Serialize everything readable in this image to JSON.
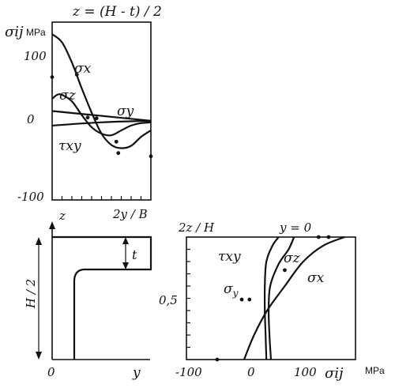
{
  "chart_data": [
    {
      "type": "line",
      "title": "z = (H - t) / 2",
      "ylabel": "σij",
      "y_unit": "MPa",
      "xlabel": "2y / B",
      "ylim": [
        -100,
        120
      ],
      "xlim": [
        0,
        1
      ],
      "y_ticks": [
        "100",
        "0",
        "-100"
      ],
      "series": [
        {
          "name": "σx",
          "x": [
            0,
            0.1,
            0.2,
            0.3,
            0.4,
            0.5,
            0.6,
            0.7,
            0.8,
            0.9,
            1.0
          ],
          "values": [
            105,
            95,
            70,
            38,
            8,
            -18,
            -32,
            -36,
            -33,
            -22,
            -14
          ]
        },
        {
          "name": "σz",
          "x": [
            0,
            0.05,
            0.1,
            0.2,
            0.3,
            0.4,
            0.5,
            0.6,
            0.7,
            0.8,
            0.9,
            1.0
          ],
          "values": [
            25,
            30,
            30,
            22,
            5,
            -10,
            -18,
            -20,
            -14,
            -8,
            -5,
            -4
          ]
        },
        {
          "name": "σy",
          "x": [
            0,
            0.5,
            1.0
          ],
          "values": [
            10,
            4,
            -2
          ]
        },
        {
          "name": "τxy",
          "x": [
            0,
            0.5,
            1.0
          ],
          "values": [
            -8,
            -4,
            -2
          ]
        }
      ],
      "points": [
        {
          "x": 0,
          "y": 52
        },
        {
          "x": 0.25,
          "y": 55
        },
        {
          "x": 0.36,
          "y": 2
        },
        {
          "x": 0.45,
          "y": 1
        },
        {
          "x": 0.65,
          "y": -28
        },
        {
          "x": 0.67,
          "y": -42
        },
        {
          "x": 1.0,
          "y": -46
        }
      ]
    },
    {
      "type": "line",
      "title": "y = 0",
      "ylabel": "2z / H",
      "xlabel": "σij",
      "x_unit": "MPa",
      "xlim": [
        -100,
        120
      ],
      "ylim": [
        0,
        1
      ],
      "x_ticks": [
        "-100",
        "0",
        "100"
      ],
      "y_ticks": [
        "0,5"
      ],
      "series": [
        {
          "name": "σx",
          "x": [
            -25,
            -12,
            5,
            28,
            52,
            78,
            106
          ],
          "values": [
            0,
            0.2,
            0.4,
            0.6,
            0.8,
            0.93,
            1.0
          ]
        },
        {
          "name": "σz",
          "x": [
            10,
            8,
            7,
            9,
            20,
            33,
            40
          ],
          "values": [
            0,
            0.2,
            0.4,
            0.6,
            0.78,
            0.9,
            1.0
          ]
        },
        {
          "name": "τxy",
          "x": [
            4,
            3,
            2,
            2,
            4,
            12,
            20
          ],
          "values": [
            0,
            0.2,
            0.4,
            0.6,
            0.8,
            0.93,
            1.0
          ]
        }
      ],
      "points": [
        {
          "x": -28,
          "y": 0.49
        },
        {
          "x": -18,
          "y": 0.49
        },
        {
          "x": 28,
          "y": 0.73
        },
        {
          "x": 72,
          "y": 1.0
        },
        {
          "x": 85,
          "y": 1.0
        },
        {
          "x": -60,
          "y": 0
        }
      ]
    }
  ],
  "section": {
    "z_label": "z",
    "y_label": "y",
    "h_label": "H / 2",
    "t_label": "t",
    "origin_label": "0"
  }
}
